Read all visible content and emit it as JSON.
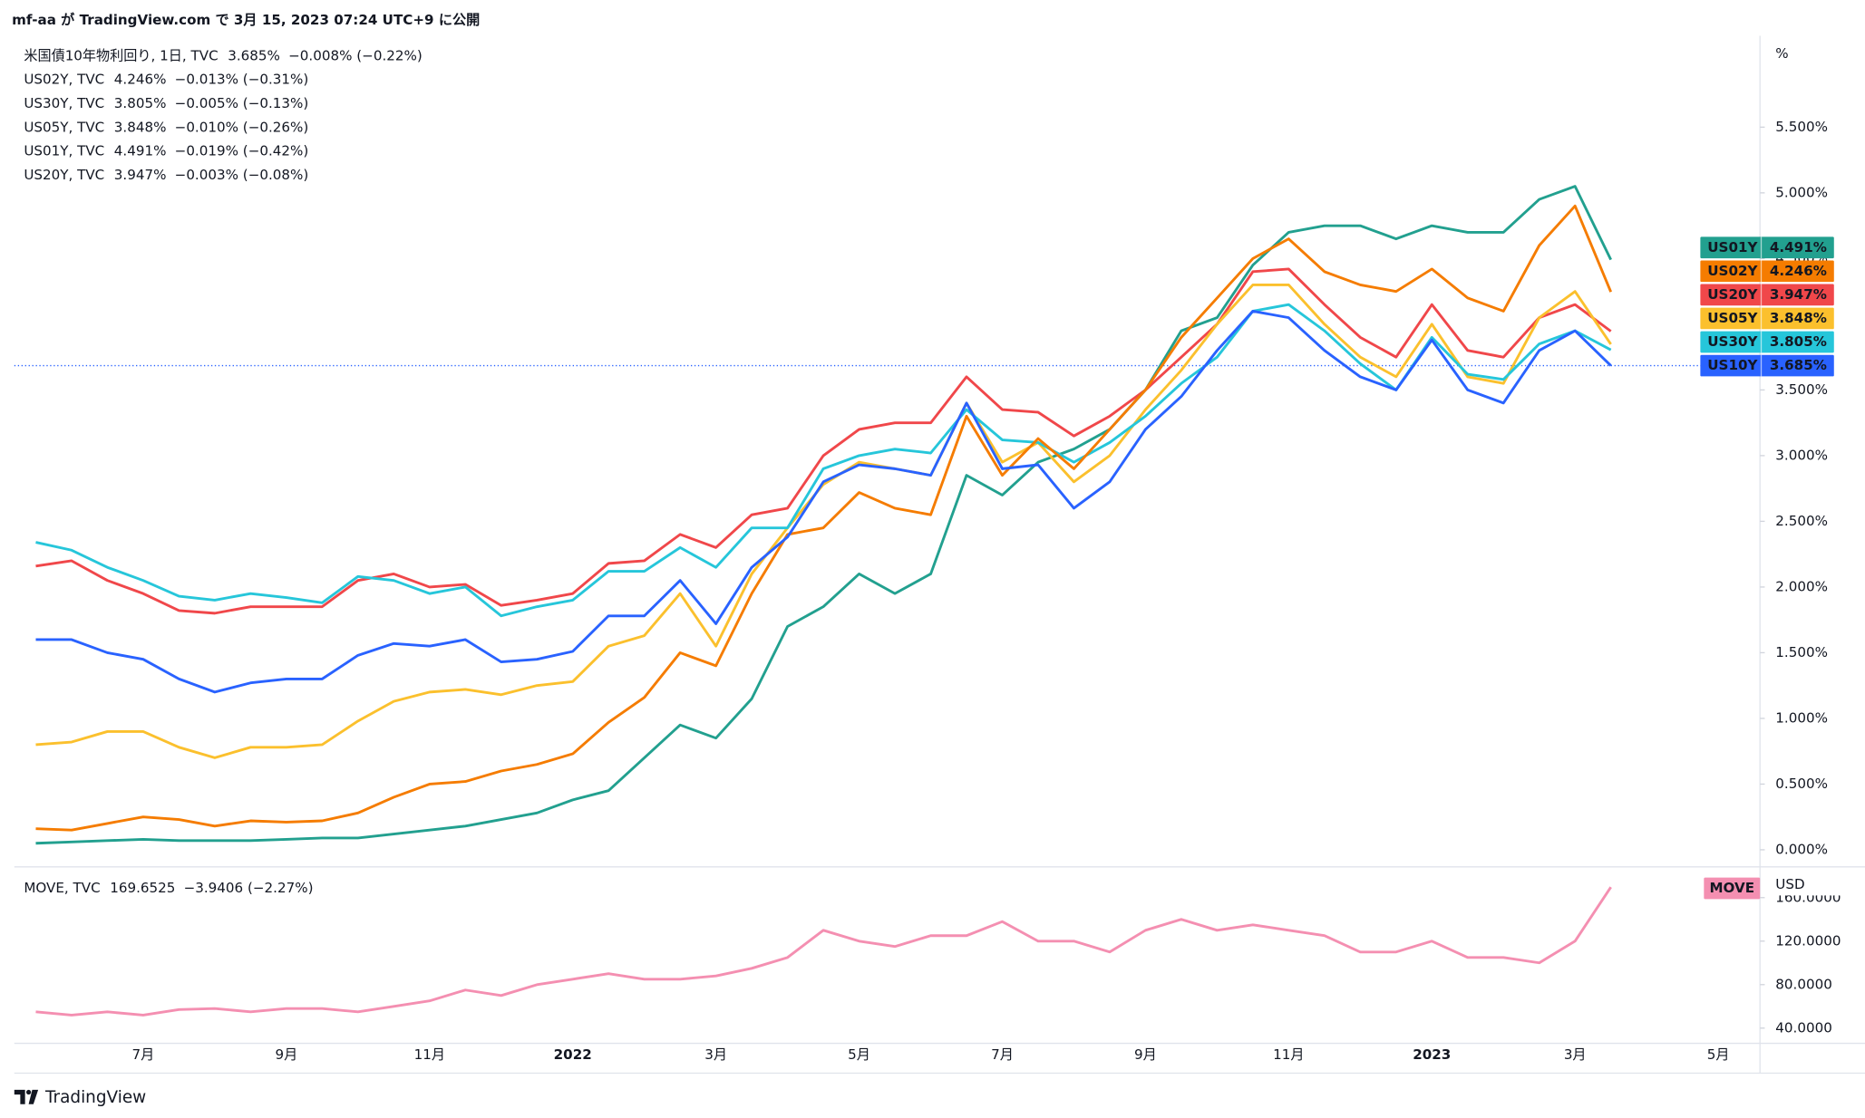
{
  "header": {
    "text": "mf-aa が TradingView.com で 3月 15, 2023 07:24 UTC+9 に公開"
  },
  "footer": {
    "brand": "TradingView"
  },
  "chart_data": [
    {
      "type": "line",
      "y_unit": "%",
      "price_line": true,
      "categories": [
        null,
        null,
        null,
        "7月",
        null,
        null,
        null,
        "9月",
        null,
        null,
        null,
        "11月",
        null,
        null,
        null,
        "2022",
        null,
        null,
        null,
        "3月",
        null,
        null,
        null,
        "5月",
        null,
        null,
        null,
        "7月",
        null,
        null,
        null,
        "9月",
        null,
        null,
        null,
        "11月",
        null,
        null,
        null,
        "2023",
        null,
        null,
        null,
        "3月",
        null,
        null,
        null,
        "5月",
        null
      ],
      "ylim": [
        -0.13,
        6.15
      ],
      "yticks": [
        {
          "value": 0,
          "label": "0.000%"
        },
        {
          "value": 0.5,
          "label": "0.500%"
        },
        {
          "value": 1,
          "label": "1.000%"
        },
        {
          "value": 1.5,
          "label": "1.500%"
        },
        {
          "value": 2,
          "label": "2.000%"
        },
        {
          "value": 2.5,
          "label": "2.500%"
        },
        {
          "value": 3,
          "label": "3.000%"
        },
        {
          "value": 3.5,
          "label": "3.500%"
        },
        {
          "value": 4,
          "label": "4.000%"
        },
        {
          "value": 4.5,
          "label": "4.500%"
        },
        {
          "value": 5,
          "label": "5.000%"
        },
        {
          "value": 5.5,
          "label": "5.500%"
        }
      ],
      "series": [
        {
          "name": "US10Y",
          "legend": "米国債10年物利回り, 1日, TVC",
          "last": "3.685%",
          "change": "−0.008% (−0.22%)",
          "color": "#2962ff",
          "values": [
            1.6,
            1.6,
            1.5,
            1.45,
            1.3,
            1.2,
            1.27,
            1.3,
            1.3,
            1.48,
            1.57,
            1.55,
            1.6,
            1.43,
            1.45,
            1.51,
            1.78,
            1.78,
            2.05,
            1.72,
            2.15,
            2.38,
            2.8,
            2.93,
            2.9,
            2.85,
            3.4,
            2.9,
            2.93,
            2.6,
            2.8,
            3.2,
            3.45,
            3.8,
            4.1,
            4.05,
            3.8,
            3.6,
            3.5,
            3.88,
            3.5,
            3.4,
            3.8,
            3.95,
            3.685,
            null,
            null,
            null,
            null
          ]
        },
        {
          "name": "US02Y",
          "legend": "US02Y, TVC",
          "last": "4.246%",
          "change": "−0.013% (−0.31%)",
          "color": "#f57c00",
          "values": [
            0.16,
            0.15,
            0.2,
            0.25,
            0.23,
            0.18,
            0.22,
            0.21,
            0.22,
            0.28,
            0.4,
            0.5,
            0.52,
            0.6,
            0.65,
            0.73,
            0.97,
            1.16,
            1.5,
            1.4,
            1.95,
            2.4,
            2.45,
            2.72,
            2.6,
            2.55,
            3.3,
            2.85,
            3.13,
            2.9,
            3.2,
            3.5,
            3.9,
            4.2,
            4.5,
            4.65,
            4.4,
            4.3,
            4.25,
            4.42,
            4.2,
            4.1,
            4.6,
            4.9,
            4.246,
            null,
            null,
            null,
            null
          ]
        },
        {
          "name": "US30Y",
          "legend": "US30Y, TVC",
          "last": "3.805%",
          "change": "−0.005% (−0.13%)",
          "color": "#26c6da",
          "values": [
            2.34,
            2.28,
            2.15,
            2.05,
            1.93,
            1.9,
            1.95,
            1.92,
            1.88,
            2.08,
            2.05,
            1.95,
            2.0,
            1.78,
            1.85,
            1.9,
            2.12,
            2.12,
            2.3,
            2.15,
            2.45,
            2.45,
            2.9,
            3.0,
            3.05,
            3.02,
            3.35,
            3.12,
            3.1,
            2.95,
            3.1,
            3.3,
            3.55,
            3.75,
            4.1,
            4.15,
            3.95,
            3.7,
            3.5,
            3.9,
            3.62,
            3.58,
            3.85,
            3.95,
            3.805,
            null,
            null,
            null,
            null
          ]
        },
        {
          "name": "US05Y",
          "legend": "US05Y, TVC",
          "last": "3.848%",
          "change": "−0.010% (−0.26%)",
          "color": "#fbc02d",
          "values": [
            0.8,
            0.82,
            0.9,
            0.9,
            0.78,
            0.7,
            0.78,
            0.78,
            0.8,
            0.98,
            1.13,
            1.2,
            1.22,
            1.18,
            1.25,
            1.28,
            1.55,
            1.63,
            1.95,
            1.55,
            2.1,
            2.45,
            2.78,
            2.95,
            2.9,
            2.85,
            3.4,
            2.95,
            3.1,
            2.8,
            3.0,
            3.35,
            3.65,
            4.0,
            4.3,
            4.3,
            4.0,
            3.75,
            3.6,
            4.0,
            3.6,
            3.55,
            4.05,
            4.25,
            3.848,
            null,
            null,
            null,
            null
          ]
        },
        {
          "name": "US01Y",
          "legend": "US01Y, TVC",
          "last": "4.491%",
          "change": "−0.019% (−0.42%)",
          "color": "#22a08f",
          "values": [
            0.05,
            0.06,
            0.07,
            0.08,
            0.07,
            0.07,
            0.07,
            0.08,
            0.09,
            0.09,
            0.12,
            0.15,
            0.18,
            0.23,
            0.28,
            0.38,
            0.45,
            0.7,
            0.95,
            0.85,
            1.15,
            1.7,
            1.85,
            2.1,
            1.95,
            2.1,
            2.85,
            2.7,
            2.95,
            3.05,
            3.2,
            3.5,
            3.95,
            4.05,
            4.45,
            4.7,
            4.75,
            4.75,
            4.65,
            4.75,
            4.7,
            4.7,
            4.95,
            5.05,
            4.491,
            null,
            null,
            null,
            null
          ]
        },
        {
          "name": "US20Y",
          "legend": "US20Y, TVC",
          "last": "3.947%",
          "change": "−0.003% (−0.08%)",
          "color": "#f0474a",
          "values": [
            2.16,
            2.2,
            2.05,
            1.95,
            1.82,
            1.8,
            1.85,
            1.85,
            1.85,
            2.05,
            2.1,
            2.0,
            2.02,
            1.86,
            1.9,
            1.95,
            2.18,
            2.2,
            2.4,
            2.3,
            2.55,
            2.6,
            3.0,
            3.2,
            3.25,
            3.25,
            3.6,
            3.35,
            3.33,
            3.15,
            3.3,
            3.5,
            3.75,
            4.0,
            4.4,
            4.42,
            4.15,
            3.9,
            3.75,
            4.15,
            3.8,
            3.75,
            4.05,
            4.15,
            3.947,
            null,
            null,
            null,
            null
          ]
        }
      ]
    },
    {
      "type": "line",
      "y_unit": "USD",
      "ylim": [
        26,
        185
      ],
      "yticks": [
        {
          "value": 40,
          "label": "40.0000"
        },
        {
          "value": 80,
          "label": "80.0000"
        },
        {
          "value": 120,
          "label": "120.0000"
        },
        {
          "value": 160,
          "label": "160.0000"
        }
      ],
      "series": [
        {
          "name": "MOVE",
          "legend": "MOVE, TVC",
          "last": "169.6525",
          "change": "−3.9406 (−2.27%)",
          "color": "#f48fb1",
          "values": [
            55,
            52,
            55,
            52,
            57,
            58,
            55,
            58,
            58,
            55,
            60,
            65,
            75,
            70,
            80,
            85,
            90,
            85,
            85,
            88,
            95,
            105,
            130,
            120,
            115,
            125,
            125,
            138,
            120,
            120,
            110,
            130,
            140,
            130,
            135,
            130,
            125,
            110,
            110,
            120,
            105,
            105,
            100,
            120,
            169.6525,
            null,
            null,
            null,
            null
          ]
        }
      ]
    }
  ]
}
